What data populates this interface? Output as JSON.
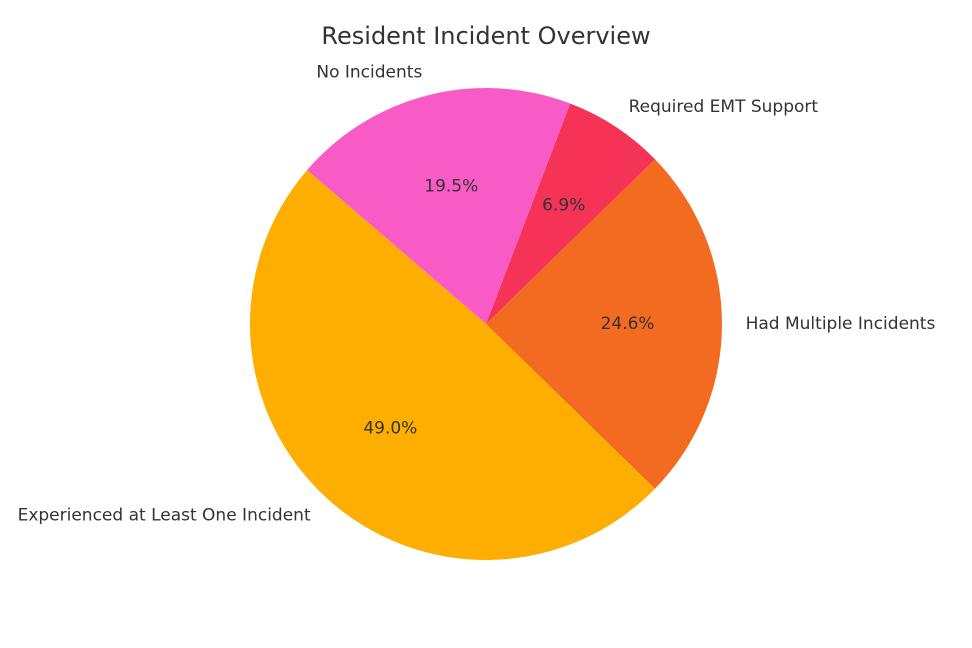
{
  "chart_data": {
    "type": "pie",
    "title": "Resident Incident Overview",
    "categories": [
      "Had Multiple Incidents",
      "Required EMT Support",
      "No Incidents",
      "Experienced at Least One Incident"
    ],
    "values": [
      24.6,
      6.9,
      19.5,
      49.0
    ],
    "value_labels": [
      "24.6%",
      "6.9%",
      "19.5%",
      "49.0%"
    ],
    "colors": [
      "#F26B21",
      "#F43357",
      "#F95BC6",
      "#FEAE00"
    ],
    "legend": "none",
    "start_angle_deg": -44.3,
    "direction": "counterclockwise"
  }
}
